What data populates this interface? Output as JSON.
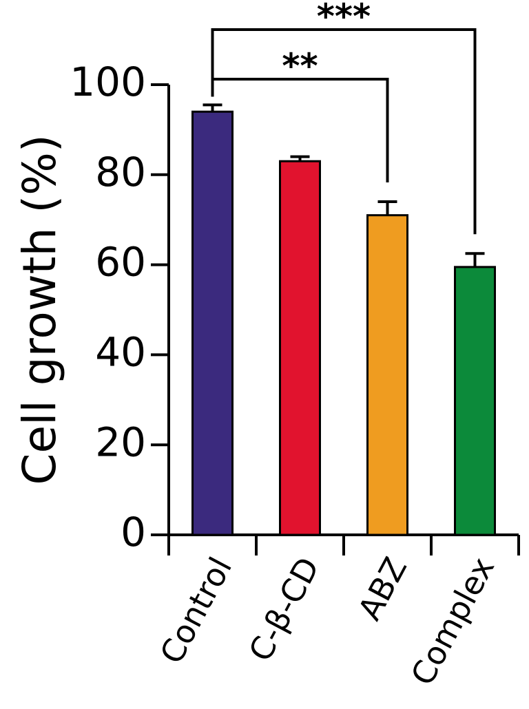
{
  "chart_data": {
    "type": "bar",
    "categories": [
      "Control",
      "C-β-CD",
      "ABZ",
      "Complex"
    ],
    "values": [
      94,
      83,
      71,
      59.5
    ],
    "errors": [
      1.5,
      1,
      3,
      3
    ],
    "colors": [
      "#3b2a7e",
      "#e1132e",
      "#ef9c20",
      "#0c8a3a"
    ],
    "ylabel": "Cell growth (%)",
    "xlabel": "",
    "ylim": [
      0,
      100
    ],
    "yticks": [
      0,
      20,
      40,
      60,
      80,
      100
    ],
    "grid": false,
    "significance": [
      {
        "from": "Control",
        "to": "ABZ",
        "label": "**"
      },
      {
        "from": "Control",
        "to": "Complex",
        "label": "***"
      }
    ]
  }
}
